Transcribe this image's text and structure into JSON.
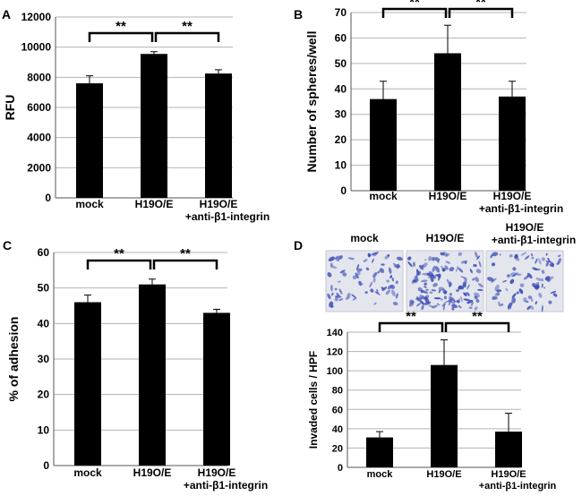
{
  "chart_data": [
    {
      "panel": "A",
      "type": "bar",
      "categories": [
        "mock",
        "H19O/E",
        "H19O/E\n+anti-β1-integrin"
      ],
      "values": [
        7600,
        9550,
        8250
      ],
      "errors": [
        500,
        150,
        250
      ],
      "ylabel": "RFU",
      "ylim": [
        0,
        12000
      ],
      "yticks": [
        0,
        2000,
        4000,
        6000,
        8000,
        10000,
        12000
      ],
      "grid": true,
      "significance": [
        {
          "from": 0,
          "to": 1,
          "label": "**"
        },
        {
          "from": 1,
          "to": 2,
          "label": "**"
        }
      ]
    },
    {
      "panel": "B",
      "type": "bar",
      "categories": [
        "mock",
        "H19O/E",
        "H19O/E\n+anti-β1-integrin"
      ],
      "values": [
        36,
        54,
        37
      ],
      "errors": [
        7,
        11,
        6
      ],
      "ylabel": "Number of spheres/well",
      "ylim": [
        0,
        70
      ],
      "yticks": [
        0,
        10,
        20,
        30,
        40,
        50,
        60,
        70
      ],
      "grid": true,
      "significance": [
        {
          "from": 0,
          "to": 1,
          "label": "**"
        },
        {
          "from": 1,
          "to": 2,
          "label": "**"
        }
      ]
    },
    {
      "panel": "C",
      "type": "bar",
      "categories": [
        "mock",
        "H19O/E",
        "H19O/E\n+anti-β1-integrin"
      ],
      "values": [
        46,
        51,
        43
      ],
      "errors": [
        2,
        1.5,
        1
      ],
      "ylabel": "% of adhesion",
      "ylim": [
        0,
        60
      ],
      "yticks": [
        0,
        10,
        20,
        30,
        40,
        50,
        60
      ],
      "grid": true,
      "significance": [
        {
          "from": 0,
          "to": 1,
          "label": "**"
        },
        {
          "from": 1,
          "to": 2,
          "label": "**"
        }
      ]
    },
    {
      "panel": "D",
      "type": "bar",
      "categories": [
        "mock",
        "H19O/E",
        "H19O/E\n+anti-β1-integrin"
      ],
      "values": [
        31,
        106,
        37
      ],
      "errors": [
        6,
        26,
        19
      ],
      "ylabel": "Invaded cells / HPF",
      "ylim": [
        0,
        140
      ],
      "yticks": [
        0,
        20,
        40,
        60,
        80,
        100,
        120,
        140
      ],
      "grid": true,
      "significance": [
        {
          "from": 0,
          "to": 1,
          "label": "**"
        },
        {
          "from": 1,
          "to": 2,
          "label": "**"
        }
      ],
      "image_labels": [
        "mock",
        "H19O/E",
        "H19O/E\n+anti-β1-integrin"
      ]
    }
  ],
  "colors": {
    "bar": "#000000",
    "grid": "#b3b3b3",
    "axis": "#555555",
    "stain": "#3f4fb5",
    "stain_background": "#e4e6ee"
  }
}
